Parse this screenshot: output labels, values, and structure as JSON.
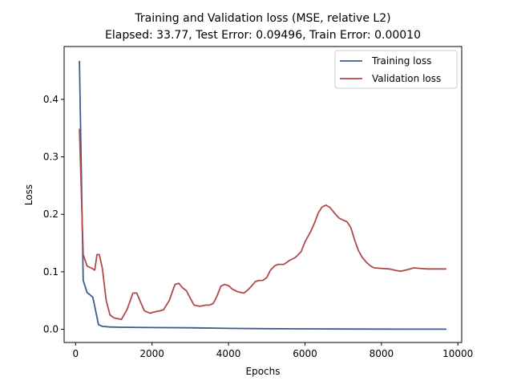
{
  "chart_data": {
    "type": "line",
    "title": "Training and Validation loss (MSE, relative L2)",
    "subtitle": "Elapsed: 33.77, Test Error: 0.09496, Train Error: 0.00010",
    "xlabel": "Epochs",
    "ylabel": "Loss",
    "xlim": [
      -300,
      10100
    ],
    "ylim": [
      -0.023,
      0.492
    ],
    "xticks": [
      0,
      2000,
      4000,
      6000,
      8000,
      10000
    ],
    "xtick_labels": [
      "0",
      "2000",
      "4000",
      "6000",
      "8000",
      "10000"
    ],
    "yticks": [
      0.0,
      0.1,
      0.2,
      0.3,
      0.4
    ],
    "ytick_labels": [
      "0.0",
      "0.1",
      "0.2",
      "0.3",
      "0.4"
    ],
    "grid": false,
    "legend_position": "top-right",
    "series": [
      {
        "name": "Training loss",
        "color": "#3b5b92",
        "x": [
          100,
          200,
          300,
          450,
          600,
          700,
          900,
          1200,
          2000,
          3000,
          4000,
          5000,
          6000,
          7000,
          8000,
          9000,
          9700
        ],
        "y": [
          0.467,
          0.085,
          0.064,
          0.056,
          0.008,
          0.005,
          0.004,
          0.0035,
          0.003,
          0.0025,
          0.0015,
          0.001,
          0.0007,
          0.0005,
          0.0003,
          0.0002,
          0.0001
        ]
      },
      {
        "name": "Validation loss",
        "color": "#b04a4a",
        "x": [
          100,
          200,
          300,
          400,
          500,
          560,
          620,
          700,
          800,
          900,
          1000,
          1200,
          1350,
          1500,
          1600,
          1700,
          1800,
          1950,
          2050,
          2200,
          2300,
          2450,
          2600,
          2700,
          2800,
          2900,
          3000,
          3100,
          3250,
          3400,
          3500,
          3600,
          3700,
          3800,
          3900,
          4000,
          4100,
          4250,
          4400,
          4500,
          4600,
          4700,
          4800,
          4900,
          5000,
          5100,
          5200,
          5300,
          5450,
          5600,
          5750,
          5900,
          6000,
          6150,
          6250,
          6350,
          6450,
          6550,
          6650,
          6800,
          6900,
          7000,
          7100,
          7200,
          7300,
          7400,
          7500,
          7600,
          7700,
          7800,
          8000,
          8200,
          8400,
          8500,
          8700,
          8850,
          9000,
          9200,
          9500,
          9700
        ],
        "y": [
          0.349,
          0.13,
          0.11,
          0.107,
          0.103,
          0.13,
          0.13,
          0.106,
          0.05,
          0.025,
          0.02,
          0.017,
          0.035,
          0.063,
          0.063,
          0.047,
          0.032,
          0.028,
          0.03,
          0.032,
          0.034,
          0.05,
          0.078,
          0.08,
          0.072,
          0.067,
          0.054,
          0.042,
          0.04,
          0.042,
          0.042,
          0.045,
          0.058,
          0.075,
          0.078,
          0.076,
          0.07,
          0.065,
          0.063,
          0.068,
          0.075,
          0.083,
          0.085,
          0.085,
          0.09,
          0.103,
          0.11,
          0.113,
          0.113,
          0.12,
          0.125,
          0.135,
          0.152,
          0.17,
          0.185,
          0.203,
          0.213,
          0.216,
          0.212,
          0.2,
          0.193,
          0.19,
          0.187,
          0.177,
          0.155,
          0.137,
          0.125,
          0.117,
          0.111,
          0.107,
          0.106,
          0.105,
          0.102,
          0.101,
          0.104,
          0.107,
          0.106,
          0.105,
          0.105,
          0.105
        ]
      }
    ]
  }
}
